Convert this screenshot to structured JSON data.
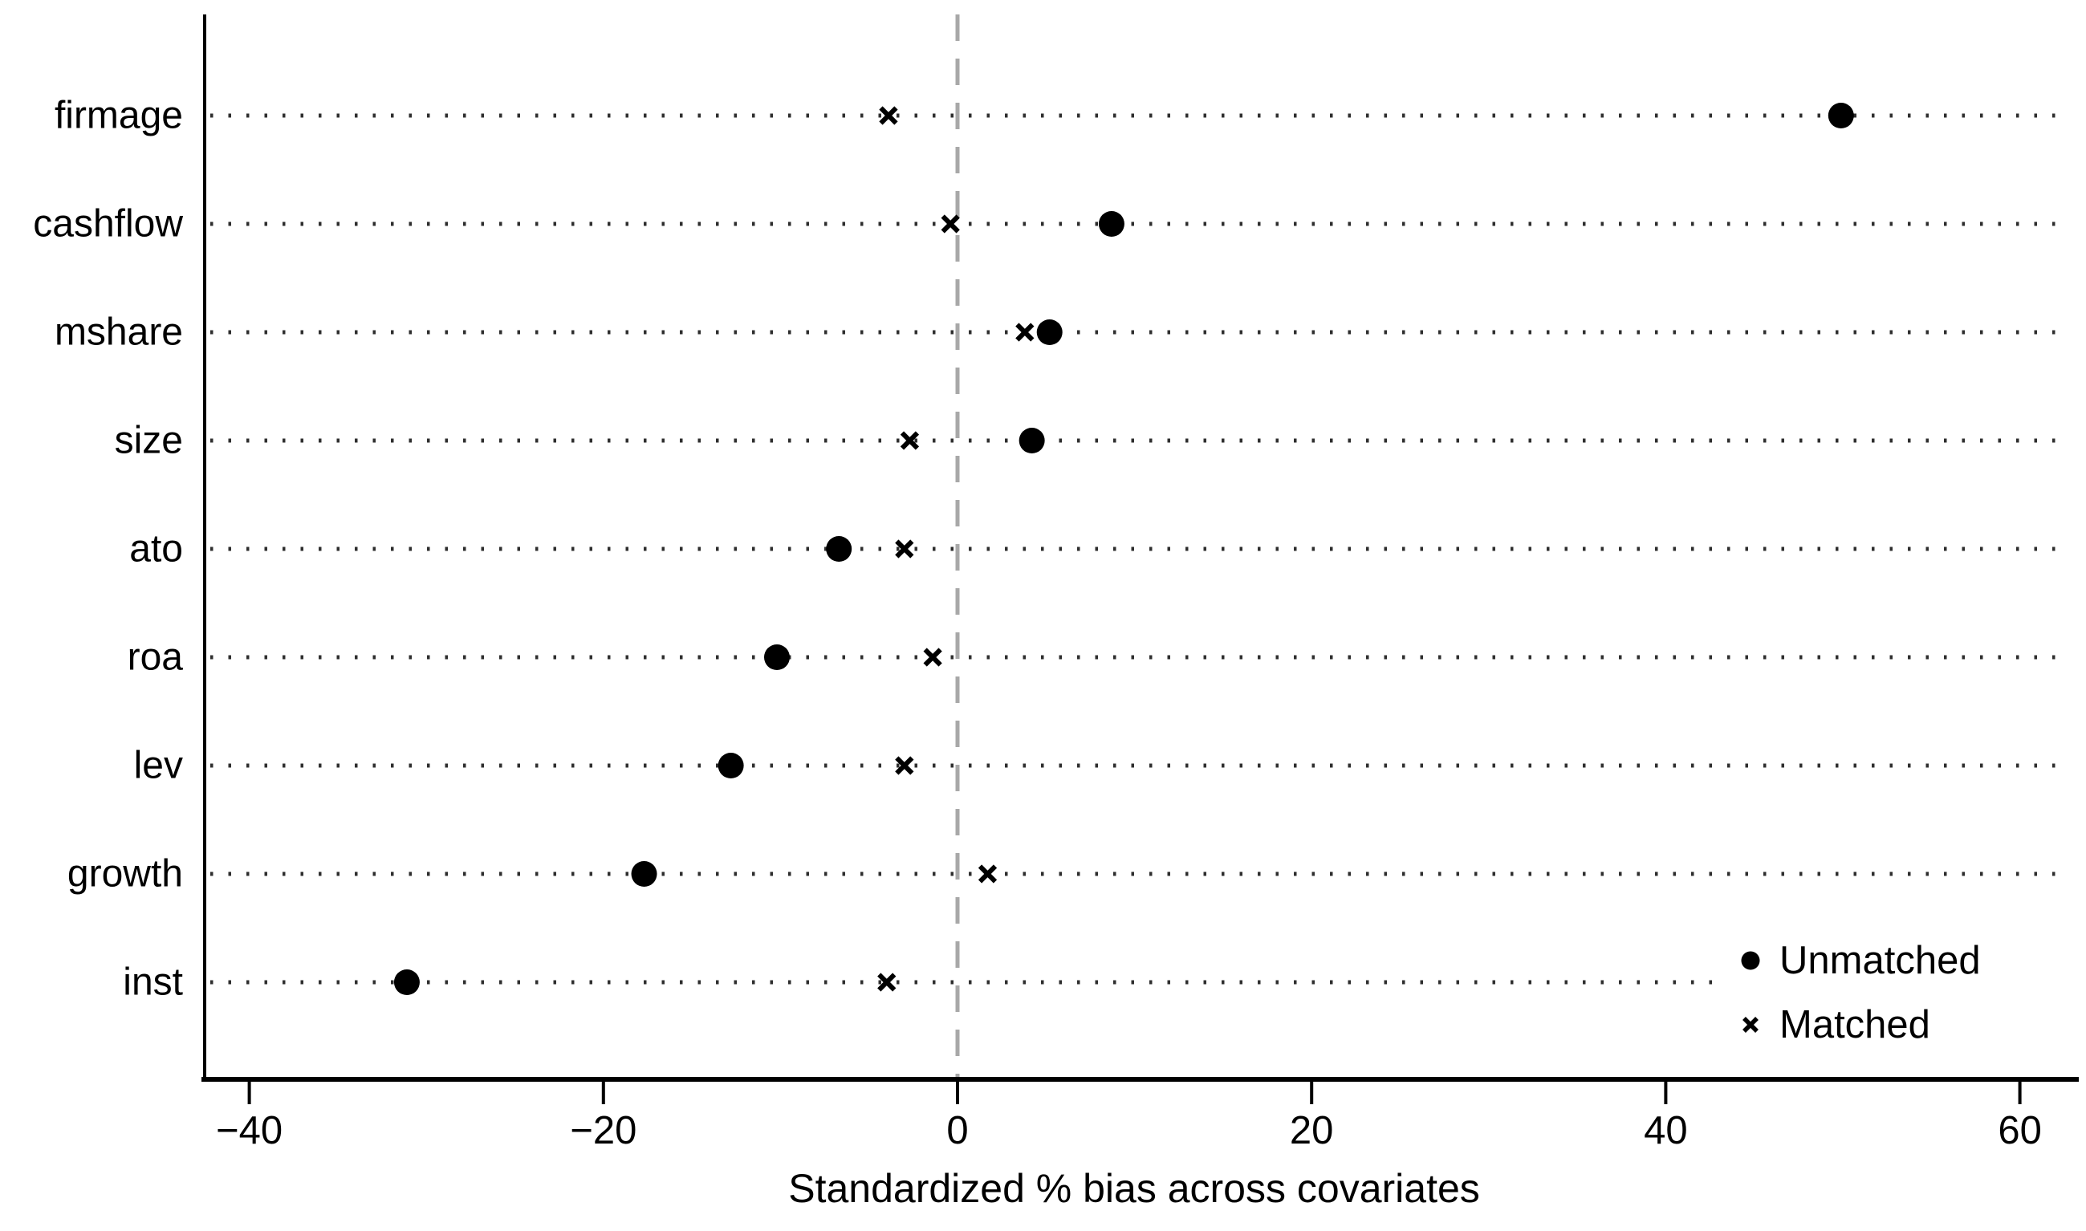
{
  "figure": {
    "background": "#ffffff"
  },
  "chart_data": {
    "type": "scatter",
    "variant": "horizontal dot-plot of covariate balance (propensity-score matching)",
    "title": "",
    "xlabel": "Standardized % bias across covariates",
    "ylabel": "",
    "categories": [
      "firmage",
      "cashflow",
      "mshare",
      "size",
      "ato",
      "roa",
      "lev",
      "growth",
      "inst"
    ],
    "x_tick_values": [
      -40,
      -20,
      0,
      20,
      40,
      60
    ],
    "x_tick_labels": [
      "−40",
      "−20",
      "0",
      "20",
      "40",
      "60"
    ],
    "xlim": [
      -42.5,
      62.5
    ],
    "reference_line_x": 0,
    "grid": "dotted horizontal gridline per category",
    "legend_position": "bottom-right inside plot",
    "series": [
      {
        "name": "Unmatched",
        "marker": "filled-circle",
        "values": [
          49.9,
          8.7,
          5.2,
          4.2,
          -6.7,
          -10.2,
          -12.8,
          -17.7,
          -31.1
        ]
      },
      {
        "name": "Matched",
        "marker": "x-cross",
        "values": [
          -3.9,
          -0.4,
          3.8,
          -2.7,
          -3.0,
          -1.4,
          -3.0,
          1.7,
          -4.0
        ]
      }
    ],
    "colors": {
      "marker": "#000000",
      "reference_line": "#a8a8a8",
      "grid": "#2e2e2e",
      "axis": "#000000",
      "text": "#000000",
      "background": "#ffffff"
    }
  }
}
